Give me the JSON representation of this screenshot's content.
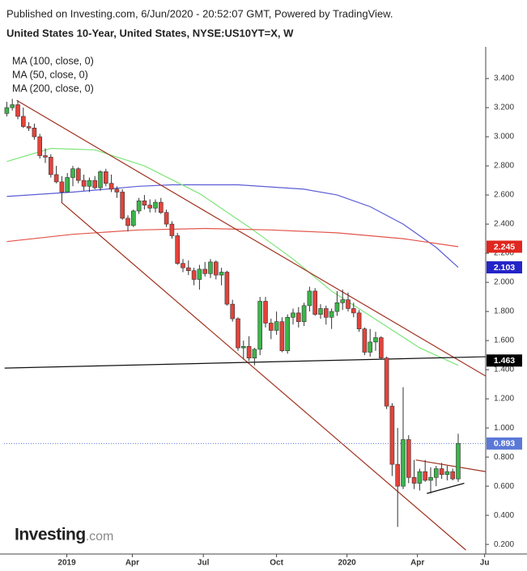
{
  "chart_data": {
    "type": "candlestick",
    "source": "Published on Investing.com, 6/Jun/2020 - 20:52:07 GMT, Powered by TradingView.",
    "title": "United States 10-Year, United States, NYSE:US10YT=X, W",
    "logo": "Investing",
    "logo_suffix": ".com",
    "up_color": "#3cb54a",
    "down_color": "#e2433b",
    "wick_color": "#333333",
    "x": [
      0,
      1,
      2,
      3,
      4,
      5,
      6,
      7,
      8,
      9,
      10,
      11,
      12,
      13,
      14,
      15,
      16,
      17,
      18,
      19,
      20,
      21,
      22,
      23,
      24,
      25,
      26,
      27,
      28,
      29,
      30,
      31,
      32,
      33,
      34,
      35,
      36,
      37,
      38,
      39,
      40,
      41,
      42,
      43,
      44,
      45,
      46,
      47,
      48,
      49,
      50,
      51,
      52,
      53,
      54,
      55,
      56,
      57,
      58,
      59,
      60,
      61,
      62,
      63,
      64,
      65,
      66,
      67,
      68,
      69,
      70,
      71,
      72,
      73,
      74,
      75,
      76,
      77,
      78,
      79,
      80,
      81,
      82
    ],
    "open": [
      3.16,
      3.2,
      3.22,
      3.14,
      3.07,
      3.06,
      3.0,
      2.87,
      2.86,
      2.74,
      2.69,
      2.62,
      2.72,
      2.78,
      2.7,
      2.66,
      2.7,
      2.65,
      2.76,
      2.68,
      2.64,
      2.62,
      2.44,
      2.39,
      2.49,
      2.56,
      2.53,
      2.51,
      2.55,
      2.48,
      2.4,
      2.32,
      2.13,
      2.1,
      2.08,
      2.02,
      2.09,
      2.06,
      2.14,
      2.05,
      2.07,
      1.85,
      1.75,
      1.55,
      1.56,
      1.48,
      1.54,
      1.87,
      1.72,
      1.67,
      1.73,
      1.53,
      1.76,
      1.79,
      1.73,
      1.84,
      1.94,
      1.78,
      1.82,
      1.76,
      1.8,
      1.86,
      1.88,
      1.82,
      1.79,
      1.68,
      1.52,
      1.59,
      1.62,
      1.48,
      1.15,
      0.75,
      0.6,
      0.92,
      0.66,
      0.62,
      0.7,
      0.64,
      0.66,
      0.72,
      0.68,
      0.7,
      0.65
    ],
    "high": [
      3.24,
      3.26,
      3.25,
      3.2,
      3.1,
      3.09,
      3.02,
      2.92,
      2.88,
      2.8,
      2.73,
      2.75,
      2.8,
      2.79,
      2.74,
      2.72,
      2.73,
      2.77,
      2.78,
      2.74,
      2.66,
      2.64,
      2.46,
      2.5,
      2.58,
      2.6,
      2.57,
      2.57,
      2.58,
      2.5,
      2.42,
      2.34,
      2.16,
      2.15,
      2.1,
      2.12,
      2.14,
      2.16,
      2.15,
      2.1,
      2.08,
      1.88,
      1.76,
      1.6,
      1.63,
      1.55,
      1.9,
      1.9,
      1.75,
      1.8,
      1.76,
      1.78,
      1.82,
      1.83,
      1.86,
      1.97,
      1.96,
      1.85,
      1.84,
      1.82,
      1.94,
      1.95,
      1.93,
      1.86,
      1.81,
      1.69,
      1.68,
      1.66,
      1.63,
      1.49,
      1.17,
      1.0,
      1.28,
      0.95,
      0.78,
      0.72,
      0.78,
      0.73,
      0.74,
      0.76,
      0.74,
      0.72,
      0.96
    ],
    "low": [
      3.14,
      3.18,
      3.12,
      3.06,
      3.04,
      2.98,
      2.85,
      2.82,
      2.72,
      2.68,
      2.55,
      2.62,
      2.66,
      2.68,
      2.63,
      2.62,
      2.64,
      2.63,
      2.66,
      2.62,
      2.58,
      2.43,
      2.35,
      2.38,
      2.47,
      2.5,
      2.48,
      2.48,
      2.47,
      2.38,
      2.3,
      2.12,
      2.07,
      2.05,
      1.98,
      1.95,
      2.04,
      2.03,
      2.02,
      1.98,
      1.84,
      1.73,
      1.53,
      1.47,
      1.46,
      1.43,
      1.5,
      1.69,
      1.61,
      1.64,
      1.52,
      1.51,
      1.71,
      1.69,
      1.7,
      1.8,
      1.77,
      1.75,
      1.71,
      1.68,
      1.77,
      1.81,
      1.8,
      1.76,
      1.66,
      1.5,
      1.49,
      1.53,
      1.47,
      1.13,
      0.67,
      0.32,
      0.58,
      0.62,
      0.58,
      0.57,
      0.63,
      0.55,
      0.6,
      0.65,
      0.64,
      0.64,
      0.63
    ],
    "close": [
      3.2,
      3.22,
      3.14,
      3.07,
      3.06,
      3.0,
      2.87,
      2.86,
      2.74,
      2.69,
      2.62,
      2.72,
      2.78,
      2.7,
      2.66,
      2.7,
      2.65,
      2.76,
      2.68,
      2.64,
      2.62,
      2.44,
      2.39,
      2.49,
      2.56,
      2.53,
      2.51,
      2.55,
      2.48,
      2.4,
      2.32,
      2.13,
      2.1,
      2.08,
      2.02,
      2.09,
      2.06,
      2.14,
      2.05,
      2.07,
      1.85,
      1.75,
      1.55,
      1.56,
      1.48,
      1.54,
      1.87,
      1.72,
      1.67,
      1.73,
      1.53,
      1.76,
      1.79,
      1.73,
      1.84,
      1.94,
      1.78,
      1.82,
      1.76,
      1.8,
      1.86,
      1.88,
      1.82,
      1.79,
      1.68,
      1.52,
      1.59,
      1.62,
      1.48,
      1.15,
      0.75,
      0.6,
      0.92,
      0.66,
      0.62,
      0.7,
      0.64,
      0.66,
      0.72,
      0.68,
      0.7,
      0.65,
      0.893
    ],
    "series": [
      {
        "name": "MA (100, close, 0)",
        "color": "#5c5cd6",
        "x": [
          0,
          12,
          24,
          30,
          42,
          54,
          60,
          66,
          72,
          78,
          82
        ],
        "values": [
          2.59,
          2.62,
          2.66,
          2.67,
          2.67,
          2.64,
          2.6,
          2.52,
          2.4,
          2.24,
          2.103
        ]
      },
      {
        "name": "MA (50, close, 0)",
        "color": "#7de57a",
        "x": [
          0,
          8,
          16,
          25,
          35,
          44,
          52,
          59,
          66,
          75,
          82
        ],
        "values": [
          2.83,
          2.92,
          2.91,
          2.8,
          2.61,
          2.38,
          2.16,
          1.94,
          1.77,
          1.55,
          1.43
        ]
      },
      {
        "name": "MA (200, close, 0)",
        "color": "#e2544a",
        "x": [
          0,
          12,
          24,
          36,
          48,
          60,
          72,
          82
        ],
        "values": [
          2.28,
          2.33,
          2.36,
          2.37,
          2.36,
          2.34,
          2.3,
          2.245
        ]
      }
    ],
    "trendlines": [
      {
        "color": "#a0301e",
        "x": [
          1.8,
          87
        ],
        "values": [
          3.25,
          1.356
        ]
      },
      {
        "color": "#a0301e",
        "x": [
          9.9,
          83.4
        ],
        "values": [
          2.55,
          0.161
        ]
      },
      {
        "color": "#111111",
        "x": [
          -0.4,
          87
        ],
        "values": [
          1.411,
          1.489
        ]
      },
      {
        "color": "#a0301e",
        "x": [
          74.3,
          87
        ],
        "values": [
          0.78,
          0.7
        ]
      },
      {
        "color": "#111111",
        "x": [
          76.3,
          83.1
        ],
        "values": [
          0.55,
          0.62
        ]
      }
    ],
    "price_labels": [
      {
        "value": 2.245,
        "color": "#e0261f",
        "dotted": false
      },
      {
        "value": 2.103,
        "color": "#2424c8",
        "dotted": false
      },
      {
        "value": 1.463,
        "color": "#000000",
        "dotted": false
      },
      {
        "value": 0.893,
        "color": "#5a78d8",
        "dotted": true
      }
    ],
    "xlim": [
      -0.5,
      87
    ],
    "ylim": [
      0.134,
      3.606
    ],
    "xticks": [
      {
        "value": 10.9,
        "label": "2019"
      },
      {
        "value": 22.8,
        "label": "Apr"
      },
      {
        "value": 35.7,
        "label": "Jul"
      },
      {
        "value": 49,
        "label": "Oct"
      },
      {
        "value": 61.8,
        "label": "2020"
      },
      {
        "value": 74.6,
        "label": "Apr"
      },
      {
        "value": 86.8,
        "label": "Ju"
      }
    ],
    "yticks": [
      {
        "value": 0.2,
        "label": "0.200"
      },
      {
        "value": 0.4,
        "label": "0.400"
      },
      {
        "value": 0.6,
        "label": "0.600"
      },
      {
        "value": 0.8,
        "label": "0.800"
      },
      {
        "value": 1.0,
        "label": "1.000"
      },
      {
        "value": 1.2,
        "label": "1.200"
      },
      {
        "value": 1.4,
        "label": "1.400"
      },
      {
        "value": 1.6,
        "label": "1.600"
      },
      {
        "value": 1.8,
        "label": "1.800"
      },
      {
        "value": 2.0,
        "label": "2.000"
      },
      {
        "value": 2.2,
        "label": "2.200"
      },
      {
        "value": 2.4,
        "label": "2.400"
      },
      {
        "value": 2.6,
        "label": "2.600"
      },
      {
        "value": 2.8,
        "label": "2.800"
      },
      {
        "value": 3.0,
        "label": "3.000"
      },
      {
        "value": 3.2,
        "label": "3.200"
      },
      {
        "value": 3.4,
        "label": "3.400"
      }
    ]
  }
}
